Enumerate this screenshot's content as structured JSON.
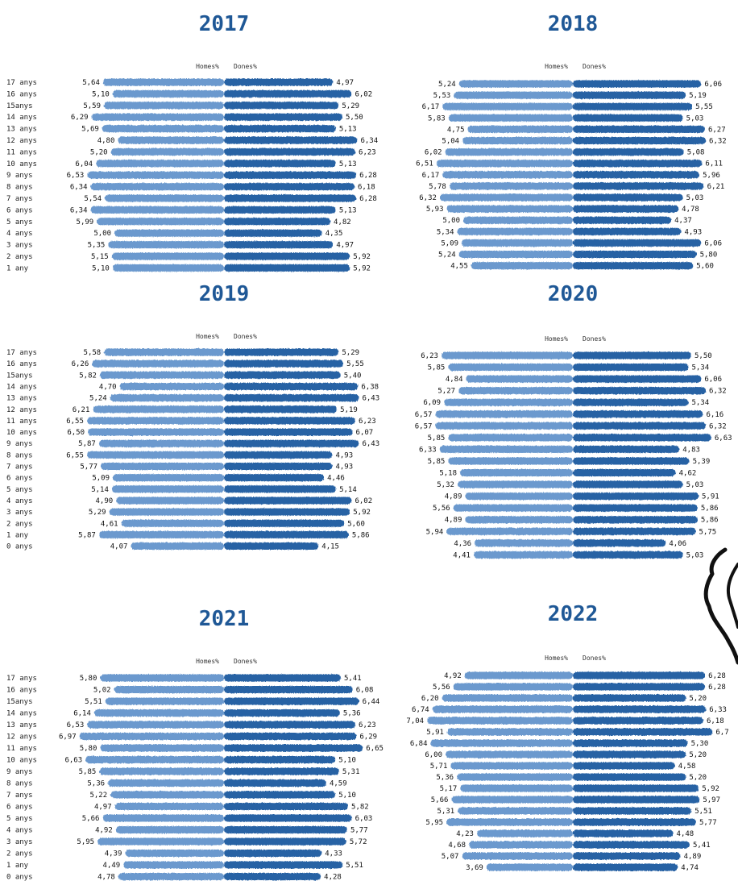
{
  "colors": {
    "men": "#5b8fc9",
    "women": "#1f5aa0",
    "title": "#1f5896"
  },
  "chart_data": [
    {
      "type": "bar",
      "title": "2017",
      "series_labels": [
        "Homes%",
        "Dones%"
      ],
      "categories": [
        "17 anys",
        "16 anys",
        "15anys",
        "14 anys",
        "13 anys",
        "12 anys",
        "11 anys",
        "10 anys",
        "9 anys",
        "8 anys",
        "7 anys",
        "6 anys",
        "5 anys",
        "4 anys",
        "3 anys",
        "2 anys",
        "1 any"
      ],
      "homes": [
        "5,64",
        "5,10",
        "5,59",
        "6,29",
        "5,69",
        "4,80",
        "5,20",
        "6,04",
        "6,53",
        "6,34",
        "5,54",
        "6,34",
        "5,99",
        "5,00",
        "5,35",
        "5,15",
        "5,10"
      ],
      "dones": [
        "4,97",
        "6,02",
        "5,29",
        "5,50",
        "5,13",
        "6,34",
        "6,23",
        "5,13",
        "6,28",
        "6,18",
        "6,28",
        "5,13",
        "4,82",
        "4,35",
        "4,97",
        "5,92",
        "5,92"
      ]
    },
    {
      "type": "bar",
      "title": "2018",
      "series_labels": [
        "Homes%",
        "Dones%"
      ],
      "categories": [],
      "homes": [
        "5,24",
        "5,53",
        "6,17",
        "5,83",
        "4,75",
        "5,04",
        "6,02",
        "6,51",
        "6,17",
        "5,78",
        "6,32",
        "5,93",
        "5,00",
        "5,34",
        "5,09",
        "5,24",
        "4,55"
      ],
      "dones": [
        "6,06",
        "5,19",
        "5,55",
        "5,03",
        "6,27",
        "6,32",
        "5,08",
        "6,11",
        "5,96",
        "6,21",
        "5,03",
        "4,78",
        "4,37",
        "4,93",
        "6,06",
        "5,80",
        "5,60"
      ]
    },
    {
      "type": "bar",
      "title": "2019",
      "series_labels": [
        "Homes%",
        "Dones%"
      ],
      "categories": [
        "17 anys",
        "16 anys",
        "15anys",
        "14 anys",
        "13 anys",
        "12 anys",
        "11 anys",
        "10 anys",
        "9 anys",
        "8 anys",
        "7 anys",
        "6 anys",
        "5 anys",
        "4 anys",
        "3 anys",
        "2 anys",
        "1 any",
        "0 anys"
      ],
      "homes": [
        "5,58",
        "6,26",
        "5,82",
        "4,70",
        "5,24",
        "6,21",
        "6,55",
        "6,50",
        "5,87",
        "6,55",
        "5,77",
        "5,09",
        "5,14",
        "4,90",
        "5,29",
        "4,61",
        "5,87",
        "4,07"
      ],
      "dones": [
        "5,29",
        "5,55",
        "5,40",
        "6,38",
        "6,43",
        "5,19",
        "6,23",
        "6,07",
        "6,43",
        "4,93",
        "4,93",
        "4,46",
        "5,14",
        "6,02",
        "5,92",
        "5,60",
        "5,86",
        "4,15"
      ]
    },
    {
      "type": "bar",
      "title": "2020",
      "series_labels": [
        "Homes%",
        "Dones%"
      ],
      "categories": [],
      "homes": [
        "6,23",
        "5,85",
        "4,84",
        "5,27",
        "6,09",
        "6,57",
        "6,57",
        "5,85",
        "6,33",
        "5,85",
        "5,18",
        "5,32",
        "4,89",
        "5,56",
        "4,89",
        "5,94",
        "4,36",
        "4,41"
      ],
      "dones": [
        "5,50",
        "5,34",
        "6,06",
        "6,32",
        "5,34",
        "6,16",
        "6,32",
        "6,63",
        "4,83",
        "5,39",
        "4,62",
        "5,03",
        "5,91",
        "5,86",
        "5,86",
        "5,75",
        "4,06",
        "5,03"
      ]
    },
    {
      "type": "bar",
      "title": "2021",
      "series_labels": [
        "Homes%",
        "Dones%"
      ],
      "categories": [
        "17 anys",
        "16 anys",
        "15anys",
        "14 anys",
        "13 anys",
        "12 anys",
        "11 anys",
        "10 anys",
        "9 anys",
        "8 anys",
        "7 anys",
        "6 anys",
        "5 anys",
        "4 anys",
        "3 anys",
        "2 anys",
        "1 any",
        "0 anys"
      ],
      "homes": [
        "5,80",
        "5,02",
        "5,51",
        "6,14",
        "6,53",
        "6,97",
        "5,80",
        "6,63",
        "5,85",
        "5,36",
        "5,22",
        "4,97",
        "5,66",
        "4,92",
        "5,95",
        "4,39",
        "4,49",
        "4,78"
      ],
      "dones": [
        "5,41",
        "6,08",
        "6,44",
        "5,36",
        "6,23",
        "6,29",
        "6,65",
        "5,10",
        "5,31",
        "4,59",
        "5,10",
        "5,82",
        "6,03",
        "5,77",
        "5,72",
        "4,33",
        "5,51",
        "4,28"
      ]
    },
    {
      "type": "bar",
      "title": "2022",
      "series_labels": [
        "Homes%",
        "Dones%"
      ],
      "categories": [],
      "homes": [
        "4,92",
        "5,56",
        "6,20",
        "6,74",
        "7,04",
        "5,91",
        "6,84",
        "6,00",
        "5,71",
        "5,36",
        "5,17",
        "5,66",
        "5,31",
        "5,95",
        "4,23",
        "4,68",
        "5,07",
        "3,69"
      ],
      "dones": [
        "6,28",
        "6,28",
        "5,20",
        "6,33",
        "6,18",
        "6,7",
        "5,30",
        "5,20",
        "4,58",
        "5,20",
        "5,92",
        "5,97",
        "5,51",
        "5,77",
        "4,48",
        "5,41",
        "4,89",
        "4,74"
      ]
    }
  ]
}
